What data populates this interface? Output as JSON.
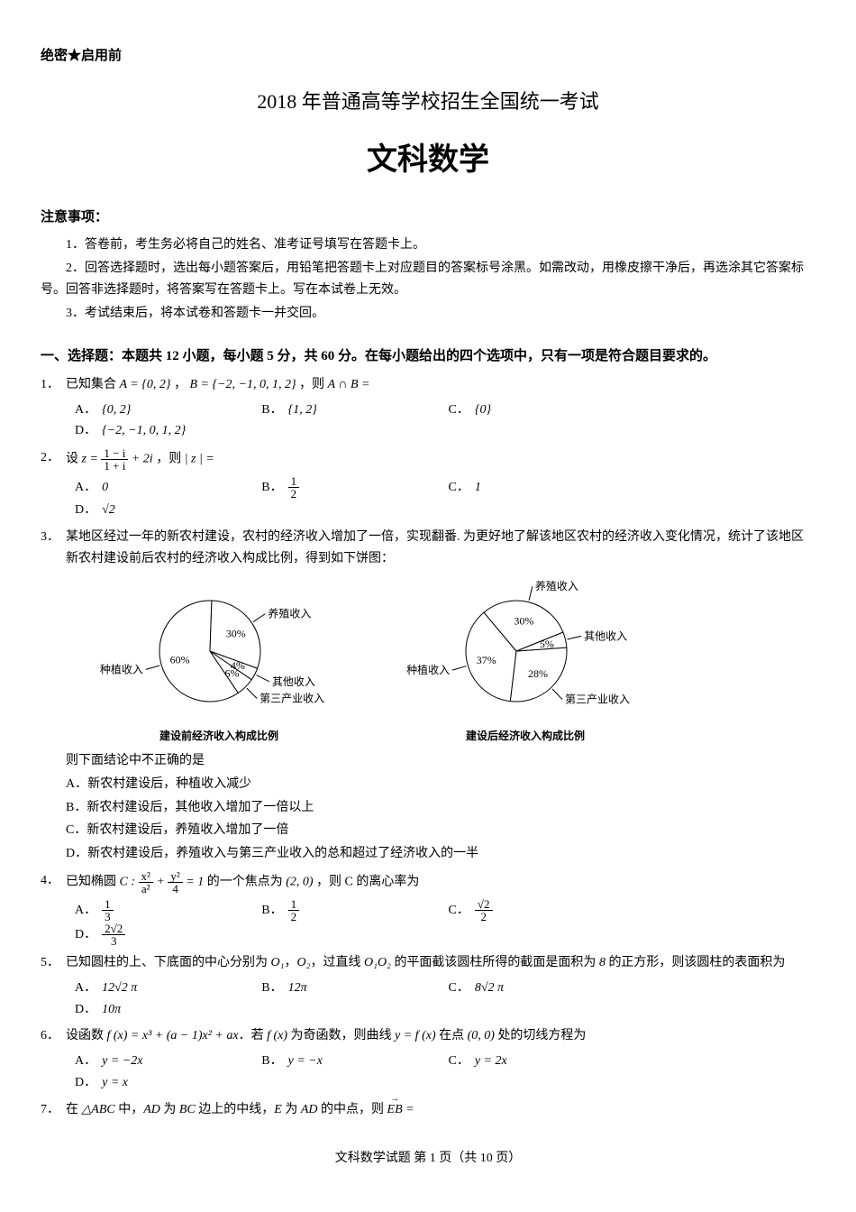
{
  "confidential": "绝密★启用前",
  "exam_title": "2018 年普通高等学校招生全国统一考试",
  "subject_title": "文科数学",
  "notice_header": "注意事项：",
  "notices": [
    "1．答卷前，考生务必将自己的姓名、准考证号填写在答题卡上。",
    "2．回答选择题时，选出每小题答案后，用铅笔把答题卡上对应题目的答案标号涂黑。如需改动，用橡皮擦干净后，再选涂其它答案标号。回答非选择题时，将答案写在答题卡上。写在本试卷上无效。",
    "3．考试结束后，将本试卷和答题卡一并交回。"
  ],
  "section1_header": "一、选择题：本题共 12 小题，每小题 5 分，共 60 分。在每小题给出的四个选项中，只有一项是符合题目要求的。",
  "q1": {
    "num": "1．",
    "stem_pre": "已知集合 ",
    "stem_mid": "，",
    "stem_post": "，则 ",
    "A_set": "A = {0, 2}",
    "B_set": "B = {−2, −1, 0, 1, 2}",
    "expr": "A ∩ B =",
    "opts": {
      "A": "{0, 2}",
      "B": "{1, 2}",
      "C": "{0}",
      "D": "{−2, −1, 0, 1, 2}"
    }
  },
  "q2": {
    "num": "2．",
    "stem_pre": "设 ",
    "stem_post": "，则 ",
    "z_lhs": "z = ",
    "frac_num": "1 − i",
    "frac_den": "1 + i",
    "z_tail": " + 2i",
    "mod": "| z | =",
    "opts": {
      "A": "0",
      "B_num": "1",
      "B_den": "2",
      "C": "1",
      "D": "√2"
    }
  },
  "q3": {
    "num": "3．",
    "stem1": "某地区经过一年的新农村建设，农村的经济收入增加了一倍，实现翻番. 为更好地了解该地区农村的经济收入变化情况，统计了该地区新农村建设前后农村的经济收入构成比例，得到如下饼图：",
    "pie_before": {
      "caption": "建设前经济收入构成比例",
      "slices": [
        {
          "label": "种植收入",
          "value": 60,
          "color": "#ffffff"
        },
        {
          "label": "第三产业收入",
          "value": 6,
          "color": "#ffffff"
        },
        {
          "label": "其他收入",
          "value": 4,
          "color": "#ffffff"
        },
        {
          "label": "养殖收入",
          "value": 30,
          "color": "#ffffff"
        }
      ],
      "value_labels": [
        "60%",
        "6%",
        "4%",
        "30%"
      ],
      "start_angle": 88
    },
    "pie_after": {
      "caption": "建设后经济收入构成比例",
      "slices": [
        {
          "label": "种植收入",
          "value": 37,
          "color": "#ffffff"
        },
        {
          "label": "第三产业收入",
          "value": 28,
          "color": "#ffffff"
        },
        {
          "label": "其他收入",
          "value": 5,
          "color": "#ffffff"
        },
        {
          "label": "养殖收入",
          "value": 30,
          "color": "#ffffff"
        }
      ],
      "value_labels": [
        "37%",
        "28%",
        "5%",
        "30%"
      ],
      "start_angle": 130
    },
    "stem2": "则下面结论中不正确的是",
    "opts": {
      "A": "新农村建设后，种植收入减少",
      "B": "新农村建设后，其他收入增加了一倍以上",
      "C": "新农村建设后，养殖收入增加了一倍",
      "D": "新农村建设后，养殖收入与第三产业收入的总和超过了经济收入的一半"
    }
  },
  "q4": {
    "num": "4．",
    "stem_pre": "已知椭圆 ",
    "curve": "C : ",
    "t1_num": "x²",
    "t1_den": "a²",
    "plus": " + ",
    "t2_num": "y²",
    "t2_den": "4",
    "eq": " = 1",
    "stem_mid": " 的一个焦点为 ",
    "focus": "(2, 0)",
    "stem_post": "，则 C 的离心率为",
    "opts": {
      "A_num": "1",
      "A_den": "3",
      "B_num": "1",
      "B_den": "2",
      "C_num": "√2",
      "C_den": "2",
      "D_num": "2√2",
      "D_den": "3"
    }
  },
  "q5": {
    "num": "5．",
    "stem_a": "已知圆柱的上、下底面的中心分别为 ",
    "O1": "O₁",
    "comma": "，",
    "O2": "O₂",
    "stem_b": "，过直线 ",
    "O1O2": "O₁O₂",
    "stem_c": " 的平面截该圆柱所得的截面是面积为 ",
    "eight": "8",
    "stem_d": " 的正方形，则该圆柱的表面积为",
    "opts": {
      "A": "12√2 π",
      "B": "12π",
      "C": "8√2 π",
      "D": "10π"
    }
  },
  "q6": {
    "num": "6．",
    "stem_a": "设函数 ",
    "fx": "f (x) = x³ + (a − 1)x² + ax",
    "stem_b": "．若 ",
    "fx2": "f (x)",
    "stem_c": " 为奇函数，则曲线 ",
    "yfx": "y = f (x)",
    "stem_d": " 在点 ",
    "pt": "(0, 0)",
    "stem_e": " 处的切线方程为",
    "opts": {
      "A": "y = −2x",
      "B": "y = −x",
      "C": "y = 2x",
      "D": "y = x"
    }
  },
  "q7": {
    "num": "7．",
    "stem_a": "在 ",
    "tri": "△ABC",
    "stem_b": " 中，",
    "AD": "AD",
    "stem_c": " 为 ",
    "BC": "BC",
    "stem_d": " 边上的中线，",
    "E": "E",
    "stem_e": " 为 ",
    "AD2": "AD",
    "stem_f": " 的中点，则 ",
    "EB": "EB",
    "eq": " ="
  },
  "footer": "文科数学试题  第 1 页（共 10 页）",
  "labels": {
    "A": "A．",
    "B": "B．",
    "C": "C．",
    "D": "D．"
  },
  "colors": {
    "stroke": "#000000",
    "fill": "#ffffff",
    "text": "#000000"
  }
}
